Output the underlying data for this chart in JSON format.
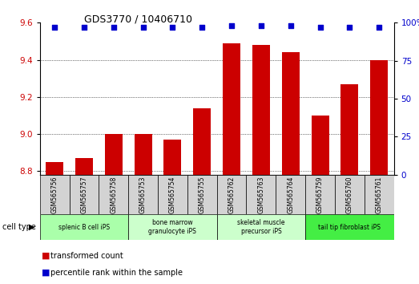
{
  "title": "GDS3770 / 10406710",
  "samples": [
    "GSM565756",
    "GSM565757",
    "GSM565758",
    "GSM565753",
    "GSM565754",
    "GSM565755",
    "GSM565762",
    "GSM565763",
    "GSM565764",
    "GSM565759",
    "GSM565760",
    "GSM565761"
  ],
  "transformed_counts": [
    8.85,
    8.87,
    9.0,
    9.0,
    8.97,
    9.14,
    9.49,
    9.48,
    9.44,
    9.1,
    9.27,
    9.4
  ],
  "percentile_ranks": [
    97,
    97,
    97,
    97,
    97,
    97,
    98,
    98,
    98,
    97,
    97,
    97
  ],
  "groups": [
    {
      "label": "splenic B cell iPS",
      "cols": [
        0,
        1,
        2
      ],
      "color": "#aaffaa"
    },
    {
      "label": "bone marrow\ngranulocyte iPS",
      "cols": [
        3,
        4,
        5
      ],
      "color": "#ccffcc"
    },
    {
      "label": "skeletal muscle\nprecursor iPS",
      "cols": [
        6,
        7,
        8
      ],
      "color": "#ccffcc"
    },
    {
      "label": "tail tip fibroblast iPS",
      "cols": [
        9,
        10,
        11
      ],
      "color": "#44ee44"
    }
  ],
  "ylim_left": [
    8.78,
    9.6
  ],
  "ylim_right": [
    0,
    100
  ],
  "yticks_left": [
    8.8,
    9.0,
    9.2,
    9.4,
    9.6
  ],
  "yticks_right": [
    0,
    25,
    50,
    75,
    100
  ],
  "bar_color": "#cc0000",
  "dot_color": "#0000cc",
  "bar_width": 0.6,
  "bar_bottom": 8.78,
  "legend_items": [
    {
      "label": "transformed count",
      "color": "#cc0000"
    },
    {
      "label": "percentile rank within the sample",
      "color": "#0000cc"
    }
  ],
  "cell_type_label": "cell type"
}
